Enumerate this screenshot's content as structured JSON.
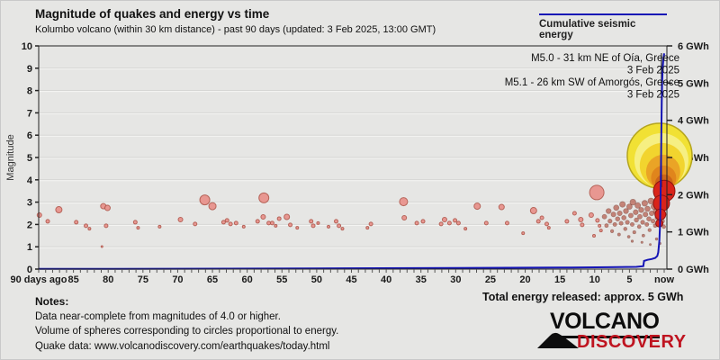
{
  "header": {
    "title": "Magnitude of quakes and energy vs time",
    "subtitle": "Kolumbo volcano (within 30 km distance) - past 90 days (updated: 3 Feb 2025, 13:00 GMT)",
    "legend_label": "Cumulative seismic energy"
  },
  "footer": {
    "notes_title": "Notes:",
    "notes": [
      "Data near-complete from magnitudes of 4.0 or higher.",
      "Volume of spheres corresponding to circles proportional to energy.",
      "Quake data: www.volcanodiscovery.com/earthquakes/today.html"
    ],
    "total_energy": "Total energy released: approx. 5 GWh"
  },
  "logo": {
    "line1": "VOLCANO",
    "line2": "DISCOVERY"
  },
  "chart_data": {
    "type": "scatter",
    "title": "Magnitude of quakes and energy vs time",
    "ylabel": "Magnitude",
    "x_axis": {
      "left_label": "90 days ago",
      "right_label": "now",
      "major_ticks": [
        85,
        80,
        75,
        70,
        65,
        60,
        55,
        50,
        45,
        40,
        35,
        30,
        25,
        20,
        15,
        10,
        5
      ],
      "range_days": [
        90,
        0
      ],
      "minor_tick_every_days": 1
    },
    "mag_axis": {
      "min": 0,
      "max": 10,
      "ticks": [
        0,
        1,
        2,
        3,
        4,
        5,
        6,
        7,
        8,
        9,
        10
      ]
    },
    "energy_axis": {
      "min": 0,
      "max": 6,
      "unit": "GWh",
      "tick_labels": [
        "0 GWh",
        "1 GWh",
        "2 GWh",
        "3 GWh",
        "4 GWh",
        "5 GWh",
        "6 GWh"
      ]
    },
    "annotations": [
      {
        "lines": [
          "M5.0 - 31 km NE of Oía, Greece",
          "3 Feb 2025"
        ]
      },
      {
        "lines": [
          "M5.1 - 26 km SW of Amorgós, Greece",
          "3 Feb 2025"
        ]
      }
    ],
    "annotation_pointer_day": 0.4,
    "colors": {
      "old_fill": "#e9918b",
      "old_stroke": "#b25a4e",
      "recent_fill": "#a8321e",
      "recent_stroke": "#6e1c0e",
      "latest_fill": "#d9241a",
      "latest_stroke": "#8c1410",
      "energy_line": "#1515b5"
    },
    "quakes_old": [
      [
        89.9,
        2.42,
        2.5
      ],
      [
        88.7,
        2.14,
        2
      ],
      [
        87.1,
        2.66,
        3.5
      ],
      [
        84.6,
        2.1,
        2
      ],
      [
        83.2,
        1.94,
        2
      ],
      [
        82.7,
        1.81,
        1.5
      ],
      [
        80.9,
        1.01,
        1
      ],
      [
        80.7,
        2.82,
        3
      ],
      [
        80.1,
        2.74,
        3
      ],
      [
        80.3,
        1.94,
        2
      ],
      [
        76.1,
        2.1,
        2
      ],
      [
        75.7,
        1.85,
        1.5
      ],
      [
        72.6,
        1.9,
        1.5
      ],
      [
        69.6,
        2.22,
        2.5
      ],
      [
        67.5,
        2.02,
        2
      ],
      [
        66.1,
        3.1,
        5.5
      ],
      [
        65.0,
        2.82,
        4
      ],
      [
        63.4,
        2.1,
        2
      ],
      [
        62.9,
        2.18,
        2
      ],
      [
        62.4,
        2.02,
        2
      ],
      [
        61.6,
        2.06,
        2
      ],
      [
        60.5,
        1.9,
        1.5
      ],
      [
        58.5,
        2.14,
        2
      ],
      [
        57.7,
        2.34,
        2.5
      ],
      [
        57.6,
        3.19,
        5.5
      ],
      [
        56.9,
        2.06,
        2
      ],
      [
        56.4,
        2.06,
        2
      ],
      [
        55.9,
        1.94,
        1.5
      ],
      [
        55.4,
        2.26,
        2
      ],
      [
        54.3,
        2.34,
        3
      ],
      [
        53.8,
        1.98,
        2
      ],
      [
        52.8,
        1.85,
        1.5
      ],
      [
        50.8,
        2.14,
        2
      ],
      [
        50.5,
        1.94,
        2
      ],
      [
        49.8,
        2.06,
        1.5
      ],
      [
        48.3,
        1.9,
        1.5
      ],
      [
        47.2,
        2.14,
        2
      ],
      [
        46.8,
        1.94,
        2
      ],
      [
        46.3,
        1.81,
        1.5
      ],
      [
        42.7,
        1.85,
        1.5
      ],
      [
        42.2,
        2.02,
        2
      ],
      [
        37.5,
        3.02,
        4.5
      ],
      [
        37.4,
        2.3,
        2.5
      ],
      [
        35.6,
        2.06,
        2
      ],
      [
        34.7,
        2.14,
        2
      ],
      [
        32.1,
        2.02,
        2
      ],
      [
        31.6,
        2.22,
        2.5
      ],
      [
        30.9,
        2.06,
        2
      ],
      [
        30.1,
        2.18,
        2
      ],
      [
        29.6,
        2.06,
        2
      ],
      [
        28.6,
        1.81,
        1.5
      ],
      [
        26.9,
        2.82,
        3.5
      ],
      [
        25.6,
        2.06,
        2
      ],
      [
        23.4,
        2.78,
        3
      ],
      [
        22.6,
        2.06,
        2
      ],
      [
        20.3,
        1.61,
        1.5
      ],
      [
        18.8,
        2.62,
        3.5
      ],
      [
        18.1,
        2.14,
        2
      ],
      [
        17.6,
        2.3,
        2
      ],
      [
        16.9,
        2.02,
        2
      ],
      [
        16.6,
        1.85,
        1.5
      ],
      [
        14.0,
        2.14,
        2
      ],
      [
        12.9,
        2.5,
        2
      ],
      [
        12.0,
        2.22,
        2.5
      ],
      [
        11.8,
        1.98,
        2
      ],
      [
        10.5,
        2.42,
        2.5
      ],
      [
        9.7,
        3.43,
        8
      ],
      [
        9.6,
        2.18,
        2
      ],
      [
        9.3,
        1.94,
        1.5
      ],
      [
        9.1,
        1.73,
        1.5
      ],
      [
        10.1,
        1.49,
        1.5
      ]
    ],
    "quakes_recent": [
      [
        8.6,
        2.35
      ],
      [
        8.3,
        1.95
      ],
      [
        8.0,
        2.6
      ],
      [
        7.8,
        2.15
      ],
      [
        7.5,
        1.7
      ],
      [
        7.3,
        2.45
      ],
      [
        7.1,
        2.0
      ],
      [
        6.9,
        2.75
      ],
      [
        6.7,
        2.25
      ],
      [
        6.5,
        1.55
      ],
      [
        6.4,
        2.5
      ],
      [
        6.2,
        2.05
      ],
      [
        6.0,
        2.9
      ],
      [
        5.8,
        2.3
      ],
      [
        5.6,
        1.8
      ],
      [
        5.5,
        2.6
      ],
      [
        5.3,
        2.1
      ],
      [
        5.1,
        1.45
      ],
      [
        5.0,
        2.8
      ],
      [
        4.8,
        2.4
      ],
      [
        4.6,
        2.0
      ],
      [
        4.5,
        3.0
      ],
      [
        4.3,
        1.65
      ],
      [
        4.1,
        2.55
      ],
      [
        4.0,
        2.2
      ],
      [
        3.8,
        2.85
      ],
      [
        3.6,
        1.9
      ],
      [
        3.5,
        2.35
      ],
      [
        3.3,
        2.65
      ],
      [
        3.1,
        2.1
      ],
      [
        3.0,
        1.5
      ],
      [
        2.8,
        2.95
      ],
      [
        2.7,
        2.45
      ],
      [
        2.5,
        2.0
      ],
      [
        2.4,
        2.7
      ],
      [
        2.2,
        2.25
      ],
      [
        2.1,
        1.75
      ],
      [
        1.9,
        3.05
      ],
      [
        1.8,
        2.5
      ],
      [
        1.6,
        2.15
      ],
      [
        1.5,
        2.8
      ],
      [
        1.3,
        1.95
      ],
      [
        1.2,
        2.6
      ],
      [
        1.0,
        2.3
      ],
      [
        0.9,
        3.15
      ],
      [
        0.8,
        2.05
      ],
      [
        0.7,
        2.75
      ],
      [
        0.6,
        2.4
      ],
      [
        0.5,
        3.25
      ],
      [
        0.45,
        2.9
      ],
      [
        0.35,
        2.55
      ],
      [
        0.3,
        3.35
      ],
      [
        0.25,
        2.15
      ],
      [
        0.2,
        3.05
      ],
      [
        0.15,
        2.7
      ],
      [
        0.1,
        2.45
      ],
      [
        0.05,
        1.9
      ],
      [
        3.2,
        1.2
      ],
      [
        2.0,
        1.1
      ],
      [
        1.1,
        1.35
      ],
      [
        0.6,
        1.15
      ],
      [
        4.6,
        1.25
      ]
    ],
    "quakes_latest": [
      [
        0.0,
        3.5,
        12
      ],
      [
        0.4,
        2.95,
        9
      ],
      [
        0.55,
        2.45,
        6
      ],
      [
        0.7,
        2.05,
        4
      ]
    ],
    "energy_spheres": [
      {
        "day": 0.65,
        "mag": 5.08,
        "r": 36,
        "fill": "#f1e134",
        "stroke": "#b5a51e"
      },
      {
        "day": 0.4,
        "mag": 4.88,
        "r": 30,
        "fill": "#f6ef82"
      },
      {
        "day": 0.28,
        "mag": 4.64,
        "r": 25,
        "fill": "#f2d42e"
      },
      {
        "day": 0.15,
        "mag": 4.36,
        "r": 19,
        "fill": "#eaa426"
      },
      {
        "day": 0.08,
        "mag": 4.08,
        "r": 14,
        "fill": "#e0851c"
      },
      {
        "day": 0.02,
        "mag": 3.84,
        "r": 10,
        "fill": "#cd6418"
      }
    ],
    "cumulative_energy": {
      "unit": "GWh",
      "points": [
        [
          90,
          0.005
        ],
        [
          70,
          0.01
        ],
        [
          50,
          0.02
        ],
        [
          30,
          0.03
        ],
        [
          15,
          0.04
        ],
        [
          8,
          0.05
        ],
        [
          4,
          0.06
        ],
        [
          3.0,
          0.08
        ],
        [
          2.9,
          0.22
        ],
        [
          2.4,
          0.25
        ],
        [
          1.8,
          0.27
        ],
        [
          1.3,
          0.3
        ],
        [
          1.0,
          0.35
        ],
        [
          0.85,
          0.45
        ],
        [
          0.7,
          0.75
        ],
        [
          0.6,
          1.2
        ],
        [
          0.52,
          2.0
        ],
        [
          0.45,
          2.9
        ],
        [
          0.4,
          3.8
        ],
        [
          0.35,
          4.5
        ],
        [
          0.3,
          5.0
        ],
        [
          0.22,
          5.4
        ],
        [
          0.12,
          5.65
        ],
        [
          0.0,
          5.8
        ]
      ],
      "total_label": "Total energy released: approx. 5 GWh"
    }
  }
}
